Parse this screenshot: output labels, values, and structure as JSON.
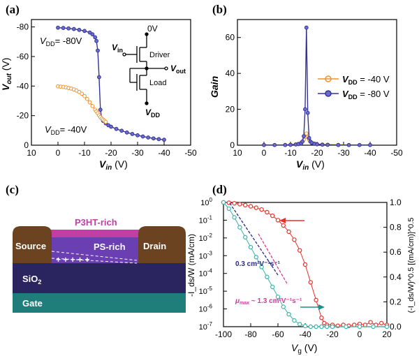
{
  "panels": {
    "a": "(a)",
    "b": "(b)",
    "c": "(c)",
    "d": "(d)"
  },
  "chart_data": [
    {
      "id": "a",
      "type": "line",
      "xlabel_main": "V",
      "xlabel_sub": "in",
      "xlabel_unit": " (V)",
      "ylabel_main": "V",
      "ylabel_sub": "out",
      "ylabel_unit": " (V)",
      "xlim": [
        10,
        -50
      ],
      "ylim": [
        0,
        -85
      ],
      "xticks": [
        10,
        0,
        -10,
        -20,
        -30,
        -40,
        -50
      ],
      "yticks": [
        0,
        -20,
        -40,
        -60,
        -80
      ],
      "annotations": [
        {
          "main": "V",
          "sub": "DD",
          "text": "= -80V"
        },
        {
          "main": "V",
          "sub": "DD",
          "text": "= -40V"
        }
      ],
      "inset": {
        "top": "0V",
        "vin_main": "V",
        "vin_sub": "in",
        "driver": "Driver",
        "vout_main": "V",
        "vout_sub": "out",
        "load": "Load",
        "vdd_main": "V",
        "vdd_sub": "DD"
      },
      "series": [
        {
          "name": "VDD=-80V",
          "color": "#33339a",
          "x": [
            0,
            -2,
            -4,
            -6,
            -8,
            -10,
            -12,
            -13,
            -14,
            -14.5,
            -15,
            -15.5,
            -16,
            -16.5,
            -17,
            -18,
            -19,
            -20,
            -22,
            -24,
            -26,
            -28,
            -30,
            -32,
            -34,
            -36,
            -38,
            -40
          ],
          "y": [
            -79.5,
            -79.3,
            -79,
            -78.6,
            -78,
            -77.3,
            -76.2,
            -75,
            -73,
            -70.5,
            -64,
            -46,
            -24,
            -18,
            -16.5,
            -14.8,
            -13.5,
            -12.5,
            -11,
            -9.8,
            -8.6,
            -7.6,
            -6.7,
            -5.9,
            -5.2,
            -4.6,
            -4.1,
            -3.7
          ]
        },
        {
          "name": "VDD=-40V",
          "color": "#f0922f",
          "x": [
            0,
            -1,
            -2,
            -3,
            -4,
            -5,
            -6,
            -7,
            -8,
            -9,
            -10,
            -11,
            -12,
            -13,
            -14,
            -14.5,
            -15,
            -15.5,
            -16,
            -16.5,
            -17,
            -17.5,
            -18
          ],
          "y": [
            -39.8,
            -39.6,
            -39.4,
            -39.1,
            -38.7,
            -38.3,
            -37.7,
            -37,
            -36,
            -34.8,
            -33.2,
            -31.3,
            -29,
            -26.5,
            -24,
            -22.8,
            -21.6,
            -20.2,
            -19,
            -18,
            -17.2,
            -16.5,
            -15.8
          ]
        }
      ]
    },
    {
      "id": "b",
      "type": "line",
      "xlabel_main": "V",
      "xlabel_sub": "in",
      "xlabel_unit": " (V)",
      "ylabel": "Gain",
      "xlim": [
        10,
        -50
      ],
      "ylim": [
        0,
        70
      ],
      "xticks": [
        10,
        0,
        -10,
        -20,
        -30,
        -40,
        -50
      ],
      "yticks": [
        0,
        20,
        40,
        60
      ],
      "legend_position": "right",
      "series": [
        {
          "name": "V_DD = -40 V",
          "label_main": "V",
          "label_sub": "DD",
          "label_text": " = -40 V",
          "color": "#f0922f",
          "x": [
            0,
            -4,
            -8,
            -10,
            -12,
            -13,
            -14,
            -15,
            -15.5,
            -16,
            -16.5,
            -17,
            -17.5,
            -18,
            -19,
            -20,
            -22,
            -24,
            -28,
            -32,
            -36,
            -40
          ],
          "y": [
            0.1,
            0.1,
            0.2,
            0.3,
            0.5,
            0.8,
            1.5,
            3,
            4.5,
            6.5,
            4.5,
            3,
            2,
            1.4,
            0.9,
            0.6,
            0.4,
            0.3,
            0.2,
            0.1,
            0.1,
            0.1
          ]
        },
        {
          "name": "V_DD = -80 V",
          "label_main": "V",
          "label_sub": "DD",
          "label_text": " = -80 V",
          "color": "#33339a",
          "x": [
            0,
            -4,
            -8,
            -10,
            -12,
            -13,
            -14,
            -14.5,
            -15,
            -15.5,
            -16,
            -16.5,
            -17,
            -17.5,
            -18,
            -19,
            -20,
            -22,
            -24,
            -28,
            -32,
            -36,
            -40
          ],
          "y": [
            0.1,
            0.1,
            0.1,
            0.2,
            0.4,
            0.6,
            1,
            2,
            5,
            20,
            65.5,
            18,
            4,
            2,
            1.3,
            0.8,
            0.5,
            0.3,
            0.2,
            0.1,
            0.1,
            0.1,
            0.1
          ]
        }
      ]
    },
    {
      "id": "d",
      "type": "scatter",
      "xlabel_main": "V",
      "xlabel_sub": "g",
      "xlabel_unit": " (V)",
      "ylabel_left": "-I_ds/W (mA/cm)",
      "ylabel_right": "(-I_ds/W)^0.5 [(mA/cm)]^0.5",
      "xlim": [
        -100,
        20
      ],
      "ylim_left_log10": [
        -7,
        0
      ],
      "ylim_right": [
        0,
        1.0
      ],
      "xticks": [
        -100,
        -80,
        -60,
        -40,
        -20,
        0,
        20
      ],
      "yticks_left": [
        {
          "exp": "0"
        },
        {
          "exp": "-1"
        },
        {
          "exp": "-2"
        },
        {
          "exp": "-3"
        },
        {
          "exp": "-4"
        },
        {
          "exp": "-5"
        },
        {
          "exp": "-6"
        },
        {
          "exp": "-7"
        }
      ],
      "yticks_right": [
        "0.0",
        "0.2",
        "0.4",
        "0.6",
        "0.8",
        "1.0"
      ],
      "annotations": [
        {
          "text": "0.3 cm²V⁻¹s⁻¹",
          "color": "#2a2a80"
        },
        {
          "prefix": "μ",
          "sub": "max",
          "text": " ~ 1.3 cm²V⁻¹s⁻¹",
          "color": "#d63a9b"
        }
      ],
      "series": [
        {
          "name": "log",
          "color": "#e8302b",
          "x": [
            -100,
            -96,
            -92,
            -88,
            -84,
            -80,
            -76,
            -72,
            -68,
            -64,
            -60,
            -56,
            -52,
            -48,
            -44,
            -40,
            -36,
            -32,
            -28,
            -26,
            -24,
            -20,
            -16,
            -12,
            -8,
            -4,
            0,
            4,
            8,
            12,
            16,
            20
          ],
          "y_log10": [
            0,
            -0.02,
            -0.05,
            -0.1,
            -0.15,
            -0.22,
            -0.3,
            -0.4,
            -0.55,
            -0.75,
            -1.0,
            -1.3,
            -1.65,
            -2.1,
            -2.7,
            -3.5,
            -4.5,
            -5.5,
            -6.5,
            -6.8,
            -6.9,
            -6.9,
            -6.95,
            -6.9,
            -6.95,
            -6.9,
            -6.85,
            -6.9,
            -6.75,
            -6.9,
            -6.8,
            -6.9
          ]
        },
        {
          "name": "sqrt",
          "color": "#38b4aa",
          "x": [
            -100,
            -96,
            -92,
            -88,
            -84,
            -80,
            -76,
            -72,
            -68,
            -64,
            -60,
            -56,
            -52,
            -48,
            -44,
            -40,
            -36,
            -32,
            -28,
            -24,
            -20,
            -10,
            0,
            10,
            20
          ],
          "y": [
            1.0,
            0.95,
            0.88,
            0.8,
            0.72,
            0.64,
            0.56,
            0.48,
            0.4,
            0.32,
            0.24,
            0.16,
            0.1,
            0.05,
            0.02,
            0.005,
            0,
            0,
            0,
            0,
            0,
            0,
            0,
            0,
            0
          ]
        }
      ]
    }
  ],
  "diagram_c": {
    "p3ht": "P3HT-rich",
    "ps": "PS-rich",
    "source": "Source",
    "drain": "Drain",
    "sio2": "SiO",
    "sio2_sub": "2",
    "gate": "Gate",
    "plus": "+  +  +  +  +"
  }
}
